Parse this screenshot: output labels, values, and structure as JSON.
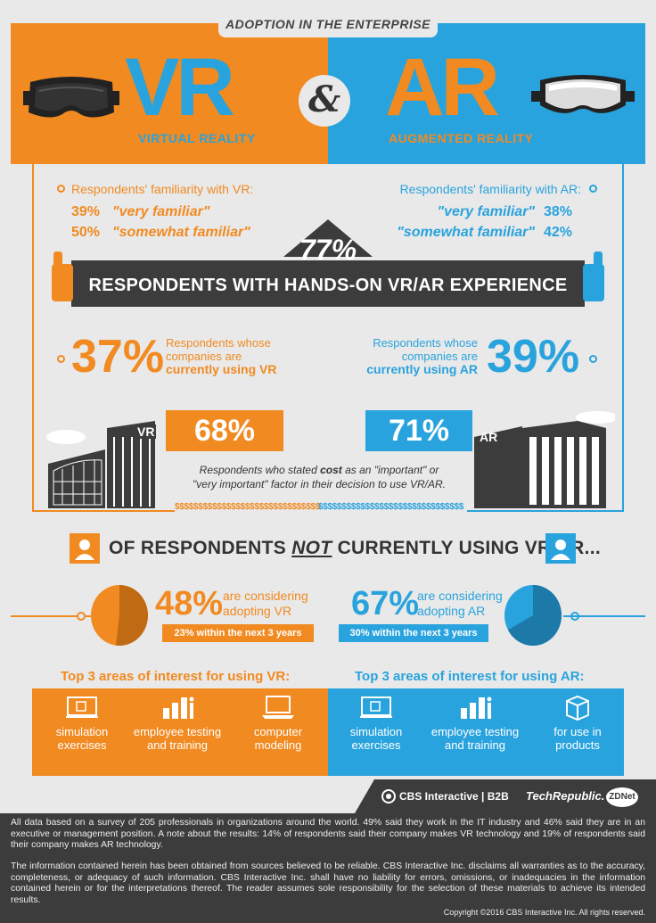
{
  "header": {
    "banner": "ADOPTION IN THE ENTERPRISE",
    "vr_big": "VR",
    "vr_sub": "VIRTUAL REALITY",
    "amp": "&",
    "ar_big": "AR",
    "ar_sub": "AUGMENTED REALITY"
  },
  "familiarity": {
    "vr_title": "Respondents' familiarity with VR:",
    "vr_very_pct": "39%",
    "vr_very_label": "\"very familiar\"",
    "vr_some_pct": "50%",
    "vr_some_label": "\"somewhat familiar\"",
    "ar_title": "Respondents' familiarity with AR:",
    "ar_very_label": "\"very familiar\"",
    "ar_very_pct": "38%",
    "ar_some_label": "\"somewhat familiar\"",
    "ar_some_pct": "42%"
  },
  "hands_on": {
    "pct": "77%",
    "label": "RESPONDENTS WITH HANDS-ON VR/AR EXPERIENCE"
  },
  "currently_using": {
    "vr_pct": "37%",
    "vr_line1": "Respondents whose",
    "vr_line2": "companies are",
    "vr_line3": "currently using VR",
    "ar_line1": "Respondents whose",
    "ar_line2": "companies are",
    "ar_line3": "currently using AR",
    "ar_pct": "39%"
  },
  "cost": {
    "vr_pct": "68%",
    "ar_pct": "71%",
    "vr_building_label": "VR",
    "ar_building_label": "AR",
    "line1_a": "Respondents who stated ",
    "line1_bold": "cost",
    "line1_b": " as an \"important\" or",
    "line2": "\"very important\" factor in their decision to use VR/AR.",
    "dollars_vr": "$$$$$$$$$$$$$$$$$$$$$$$$$$$$$$$",
    "dollars_ar": "$$$$$$$$$$$$$$$$$$$$$$$$$$$$$$$"
  },
  "not_using": {
    "heading_a": "OF RESPONDENTS",
    "heading_not": "NOT",
    "heading_b": "CURRENTLY USING VR/AR...",
    "vr_pct": "48%",
    "vr_line1": "are considering",
    "vr_line2": "adopting VR",
    "vr_within": "23% within the next 3 years",
    "ar_pct": "67%",
    "ar_line1": "are considering",
    "ar_line2": "adopting AR",
    "ar_within": "30% within the next 3 years",
    "vr_fraction": 0.48,
    "ar_fraction": 0.67
  },
  "top3": {
    "vr_title": "Top 3 areas of interest for using VR:",
    "ar_title": "Top 3 areas of interest for using AR:",
    "vr_items": [
      {
        "line1": "simulation",
        "line2": "exercises",
        "icon": "simulation-icon"
      },
      {
        "line1": "employee testing",
        "line2": "and training",
        "icon": "bar-chart-people-icon"
      },
      {
        "line1": "computer",
        "line2": "modeling",
        "icon": "laptop-icon"
      }
    ],
    "ar_items": [
      {
        "line1": "simulation",
        "line2": "exercises",
        "icon": "simulation-icon"
      },
      {
        "line1": "employee testing",
        "line2": "and training",
        "icon": "bar-chart-people-icon"
      },
      {
        "line1": "for use in",
        "line2": "products",
        "icon": "box-icon"
      }
    ]
  },
  "logos": {
    "cbs": "CBS Interactive | B2B",
    "techrepublic": "TechRepublic.",
    "zdnet": "ZDNet"
  },
  "footer": {
    "para1": "All data based on a survey of 205 professionals in organizations around the world. 49% said they work in the IT industry and 46% said they are in an executive or management position. A note about the results: 14% of respondents said their company makes VR technology and 19% of respondents said their company makes AR technology.",
    "para2": "The information contained herein has been obtained from sources believed to be reliable. CBS Interactive Inc. disclaims all warranties as to the accuracy, completeness, or adequacy of such information. CBS Interactive Inc. shall have no liability for errors, omissions, or inadequacies in the information contained herein or for the interpretations thereof. The reader assumes sole responsibility for the selection of these materials to achieve its intended results.",
    "copyright": "Copyright ©2016 CBS Interactive Inc. All rights reserved."
  },
  "colors": {
    "orange": "#f18a21",
    "blue": "#29a3dd",
    "dark": "#3c3c3c",
    "background": "#e9e9e9"
  }
}
